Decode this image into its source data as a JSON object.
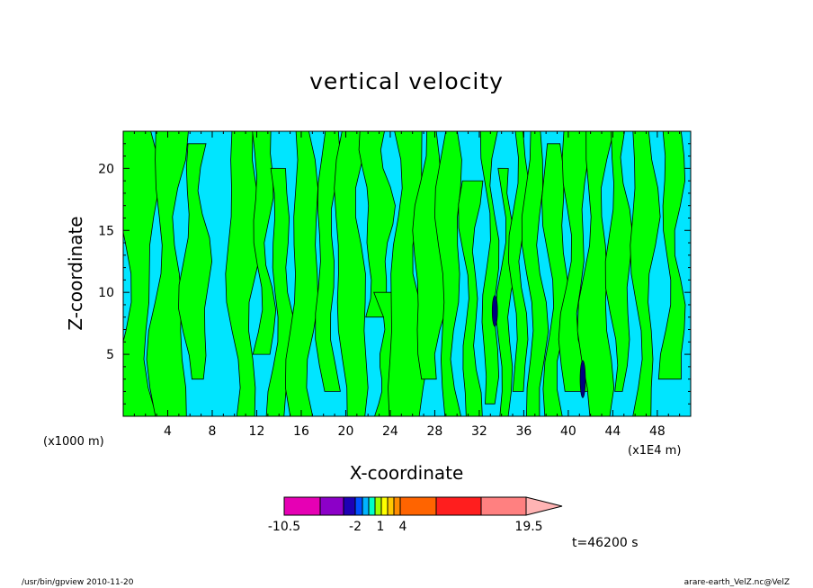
{
  "chart_data": {
    "type": "heatmap",
    "title": "vertical velocity",
    "xlabel": "X-coordinate",
    "ylabel": "Z-coordinate",
    "x_unit_left": "(x1000 m)",
    "x_unit_right": "(x1E4 m)",
    "xlim": [
      0,
      51
    ],
    "ylim": [
      0,
      23
    ],
    "xticks": [
      4,
      8,
      12,
      16,
      20,
      24,
      28,
      32,
      36,
      40,
      44,
      48
    ],
    "yticks": [
      5,
      10,
      15,
      20
    ],
    "background_level_color": "#00e5ff",
    "contour_regions": [
      {
        "x": 1.2,
        "z0": 0,
        "z1": 23,
        "w": 1.6
      },
      {
        "x": 4.0,
        "z0": 0,
        "z1": 23,
        "w": 1.4
      },
      {
        "x": 6.5,
        "z0": 3,
        "z1": 22,
        "w": 1.1
      },
      {
        "x": 10.8,
        "z0": 0,
        "z1": 23,
        "w": 1.3
      },
      {
        "x": 12.6,
        "z0": 5,
        "z1": 23,
        "w": 0.8
      },
      {
        "x": 14.2,
        "z0": 0,
        "z1": 20,
        "w": 0.9
      },
      {
        "x": 16.2,
        "z0": 0,
        "z1": 23,
        "w": 1.2
      },
      {
        "x": 18.3,
        "z0": 2,
        "z1": 23,
        "w": 0.8
      },
      {
        "x": 20.5,
        "z0": 0,
        "z1": 23,
        "w": 1.3
      },
      {
        "x": 22.8,
        "z0": 8,
        "z1": 23,
        "w": 1.2
      },
      {
        "x": 23.8,
        "z0": 0,
        "z1": 10,
        "w": 0.9
      },
      {
        "x": 25.5,
        "z0": 0,
        "z1": 23,
        "w": 1.5
      },
      {
        "x": 27.6,
        "z0": 3,
        "z1": 23,
        "w": 1.3
      },
      {
        "x": 29.3,
        "z0": 0,
        "z1": 23,
        "w": 0.9
      },
      {
        "x": 31.2,
        "z0": 0,
        "z1": 19,
        "w": 0.7
      },
      {
        "x": 33.0,
        "z0": 1,
        "z1": 23,
        "w": 0.6
      },
      {
        "x": 34.4,
        "z0": 0,
        "z1": 20,
        "w": 0.6
      },
      {
        "x": 35.6,
        "z0": 2,
        "z1": 23,
        "w": 0.6
      },
      {
        "x": 37.0,
        "z0": 0,
        "z1": 23,
        "w": 0.8
      },
      {
        "x": 38.8,
        "z0": 0,
        "z1": 22,
        "w": 0.9
      },
      {
        "x": 40.5,
        "z0": 2,
        "z1": 23,
        "w": 1.0
      },
      {
        "x": 42.5,
        "z0": 0,
        "z1": 23,
        "w": 1.2
      },
      {
        "x": 44.6,
        "z0": 2,
        "z1": 23,
        "w": 0.9
      },
      {
        "x": 46.8,
        "z0": 0,
        "z1": 23,
        "w": 1.0
      },
      {
        "x": 49.4,
        "z0": 3,
        "z1": 23,
        "w": 0.9
      }
    ],
    "strong_updrafts": [
      {
        "x": 33.4,
        "z": 8.5,
        "h": 2.5,
        "color": "#000080"
      },
      {
        "x": 41.3,
        "z": 3.0,
        "h": 3.0,
        "color": "#000080"
      }
    ],
    "colorbar": {
      "colors": [
        "#e600b4",
        "#8c00c8",
        "#1e00b4",
        "#0050ff",
        "#00b4ff",
        "#00ffc8",
        "#a0ff00",
        "#ffff00",
        "#ffc800",
        "#ff8c00",
        "#ff6400",
        "#ff1e1e",
        "#ff8080",
        "#ffb4b4"
      ],
      "widths": [
        40,
        26,
        13,
        8,
        7,
        7,
        7,
        7,
        7,
        7,
        40,
        50,
        50,
        40
      ],
      "tick_labels": [
        {
          "label": "-10.5",
          "at": 0
        },
        {
          "label": "-2",
          "at": 79
        },
        {
          "label": "1",
          "at": 107
        },
        {
          "label": "4",
          "at": 132
        },
        {
          "label": "19.5",
          "at": 272
        }
      ]
    },
    "time_label": "t=46200 s"
  },
  "footer": {
    "left": "/usr/bin/gpview   2010-11-20",
    "right": "arare-earth_VelZ.nc@VelZ"
  }
}
